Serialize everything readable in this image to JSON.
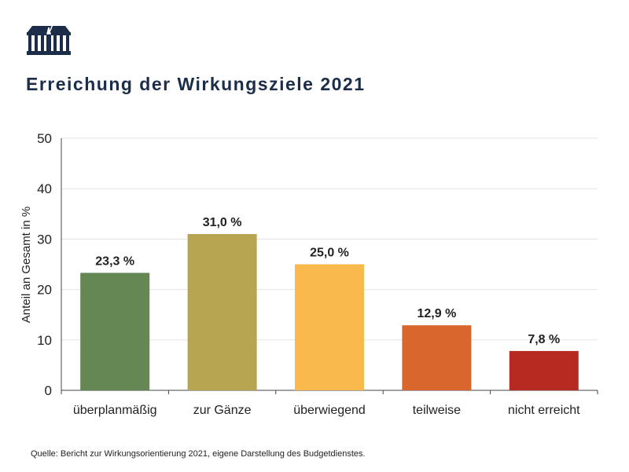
{
  "logo_label": "Parlament Österreich",
  "title": "Erreichung der Wirkungsziele 2021",
  "source": "Quelle: Bericht zur Wirkungsorientierung 2021, eigene Darstellung des Budgetdienstes.",
  "chart_data": {
    "type": "bar",
    "title": "Erreichung der Wirkungsziele 2021",
    "xlabel": "",
    "ylabel": "Anteil an Gesamt in %",
    "ylim": [
      0,
      50
    ],
    "yticks": [
      0,
      10,
      20,
      30,
      40,
      50
    ],
    "grid": true,
    "categories": [
      "überplanmäßig",
      "zur Gänze",
      "überwiegend",
      "teilweise",
      "nicht erreicht"
    ],
    "values": [
      23.3,
      31.0,
      25.0,
      12.9,
      7.8
    ],
    "data_labels": [
      "23,3 %",
      "31,0 %",
      "25,0 %",
      "12,9 %",
      "7,8 %"
    ],
    "colors": [
      "#648754",
      "#b8a551",
      "#f9b94c",
      "#d9662d",
      "#b62a22"
    ]
  }
}
